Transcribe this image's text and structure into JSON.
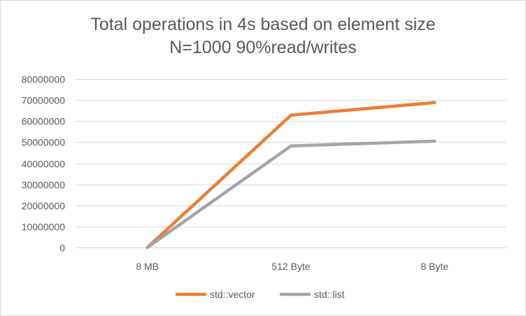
{
  "chart_data": {
    "type": "line",
    "title": "Total operations in 4s based on element size",
    "subtitle": "N=1000 90%read/writes",
    "categories": [
      "8 MB",
      "512 Byte",
      "8 Byte"
    ],
    "ylim": [
      0,
      80000000
    ],
    "yticks": [
      0,
      10000000,
      20000000,
      30000000,
      40000000,
      50000000,
      60000000,
      70000000,
      80000000
    ],
    "ytick_labels": [
      "0",
      "10000000",
      "20000000",
      "30000000",
      "40000000",
      "50000000",
      "60000000",
      "70000000",
      "80000000"
    ],
    "grid": true,
    "legend_position": "bottom",
    "series": [
      {
        "name": "std::vector",
        "color": "#ed7d31",
        "values": [
          0,
          62800000,
          68800000
        ]
      },
      {
        "name": "std::list",
        "color": "#a5a5a5",
        "values": [
          0,
          48200000,
          50500000
        ]
      }
    ]
  }
}
